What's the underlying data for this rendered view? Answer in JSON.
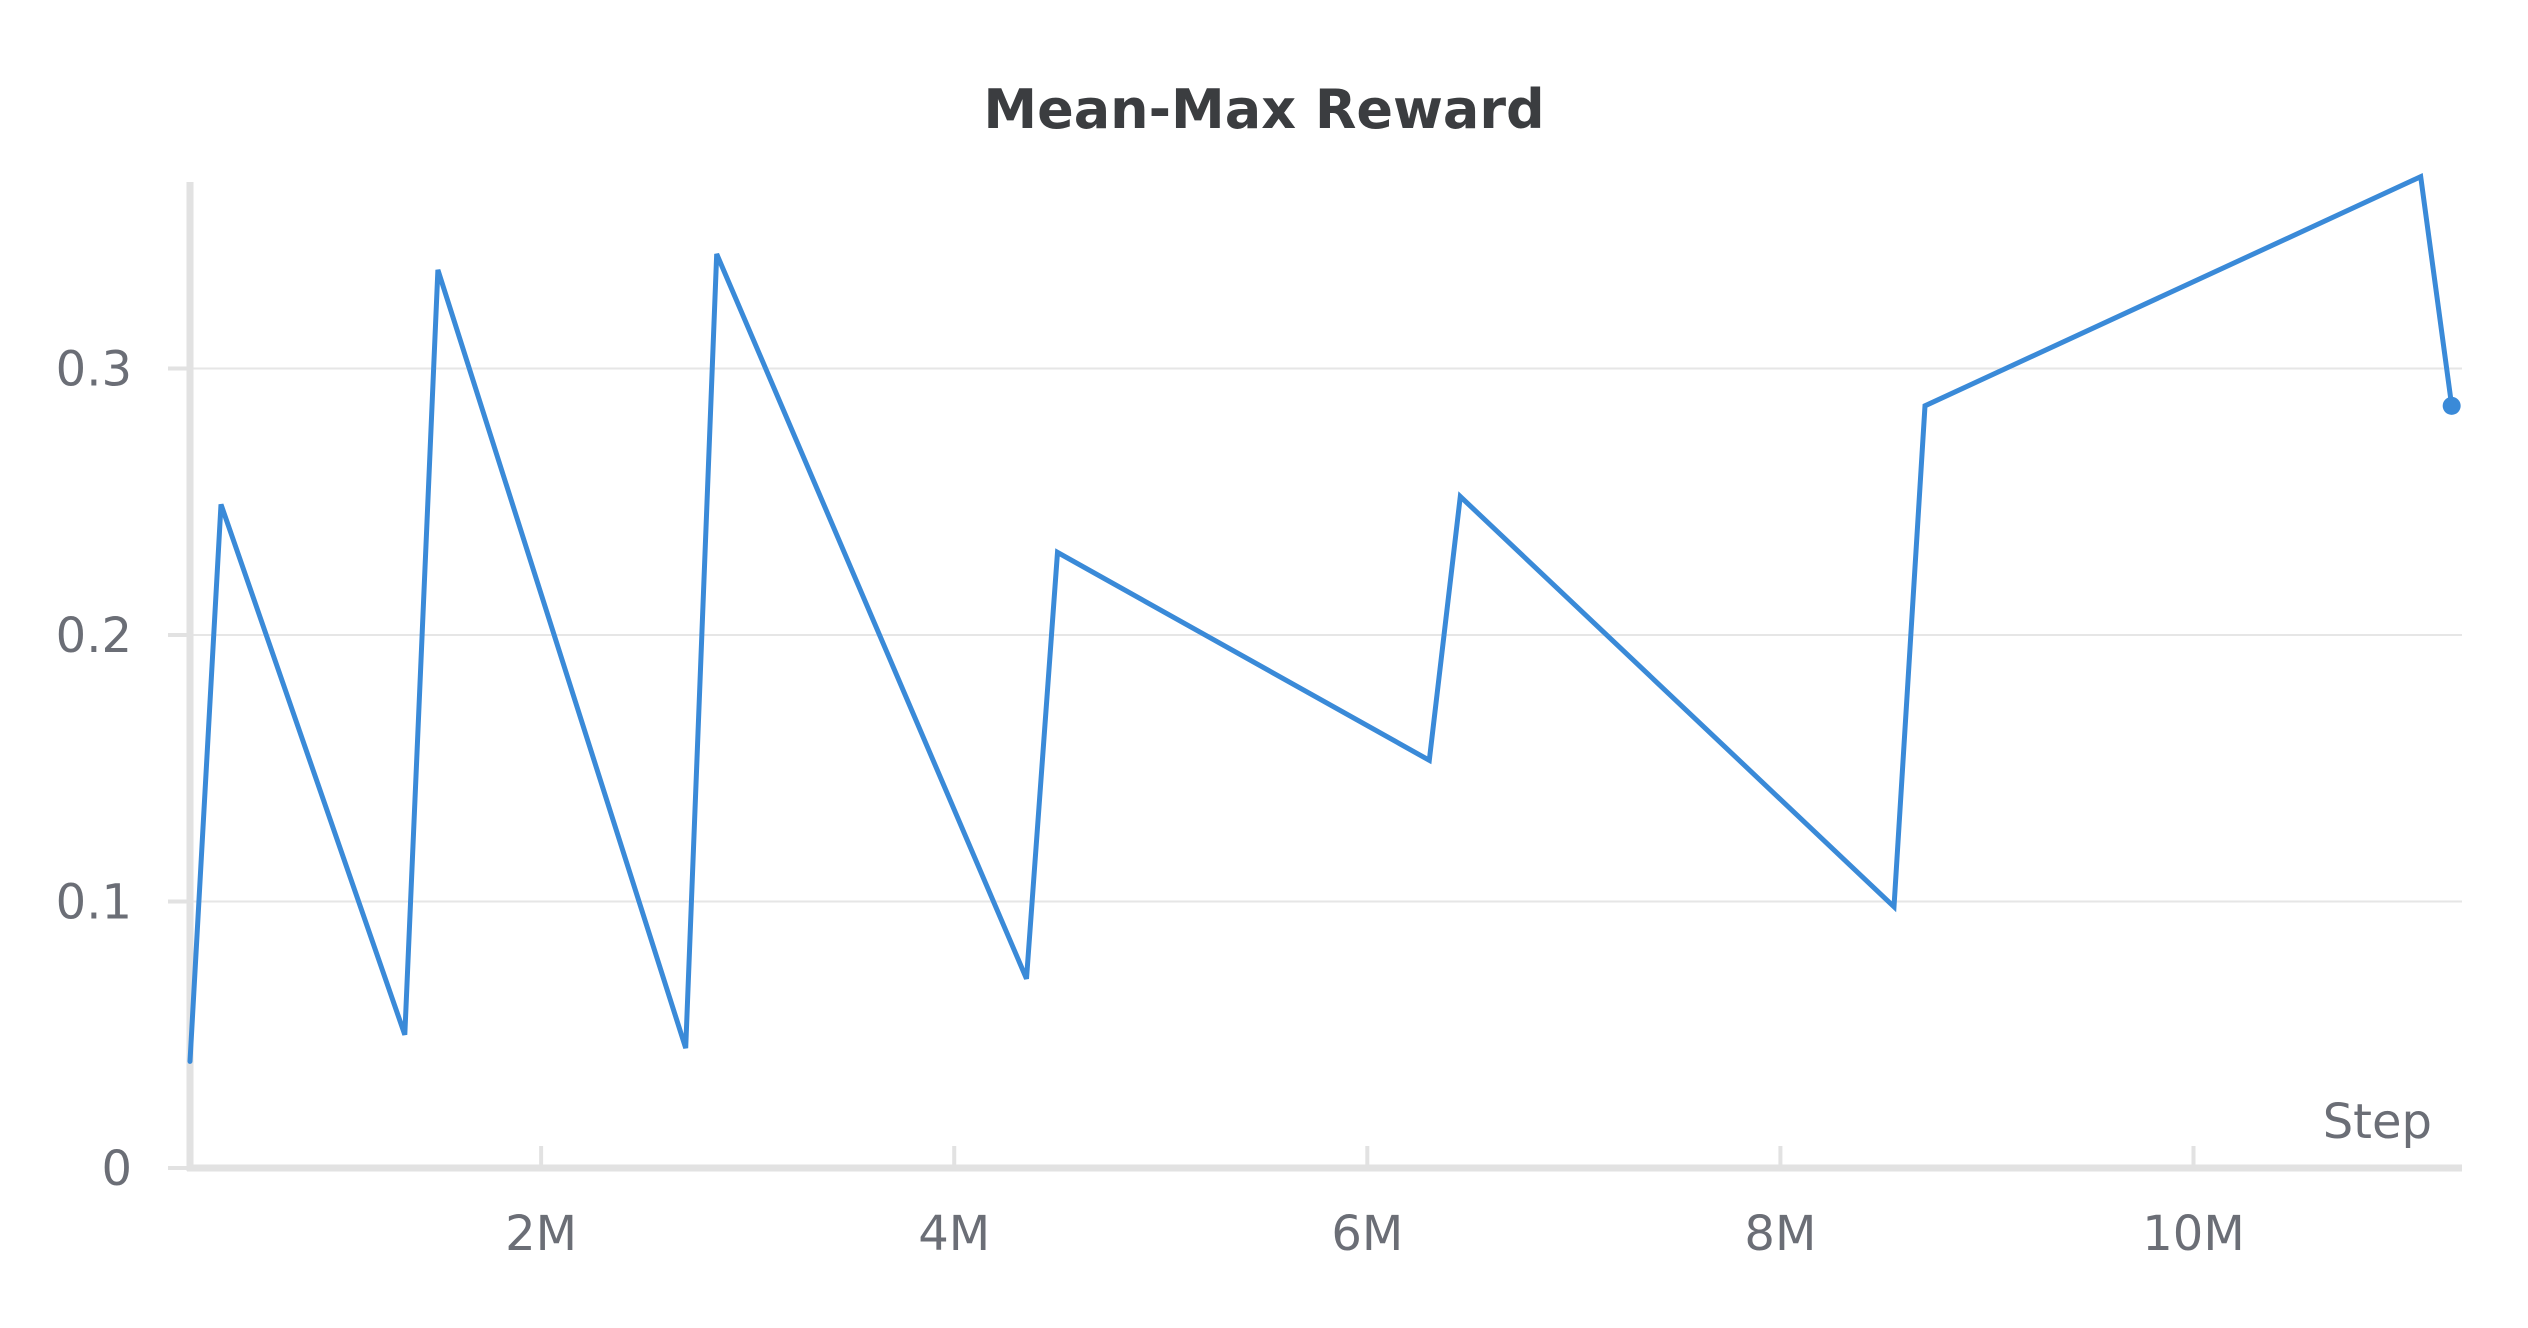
{
  "chart_data": {
    "type": "line",
    "title": "Mean-Max Reward",
    "xlabel": "Step",
    "ylabel": "",
    "xlim": [
      300000,
      11300000
    ],
    "ylim": [
      0,
      0.37
    ],
    "grid": true,
    "legend": "none",
    "y_ticks": [
      {
        "value": 0,
        "label": "0"
      },
      {
        "value": 0.1,
        "label": "0.1"
      },
      {
        "value": 0.2,
        "label": "0.2"
      },
      {
        "value": 0.3,
        "label": "0.3"
      }
    ],
    "x_ticks": [
      {
        "value": 2000000,
        "label": "2M"
      },
      {
        "value": 4000000,
        "label": "4M"
      },
      {
        "value": 6000000,
        "label": "6M"
      },
      {
        "value": 8000000,
        "label": "8M"
      },
      {
        "value": 10000000,
        "label": "10M"
      }
    ],
    "series": [
      {
        "color": "#3a8ad8",
        "x": [
          300000,
          450000,
          1340000,
          1500000,
          2700000,
          2850000,
          4350000,
          4500000,
          6300000,
          6450000,
          8550000,
          8700000,
          11100000,
          11250000
        ],
        "y": [
          0.04,
          0.249,
          0.05,
          0.337,
          0.045,
          0.343,
          0.071,
          0.231,
          0.153,
          0.252,
          0.098,
          0.286,
          0.372,
          0.286
        ]
      }
    ]
  }
}
